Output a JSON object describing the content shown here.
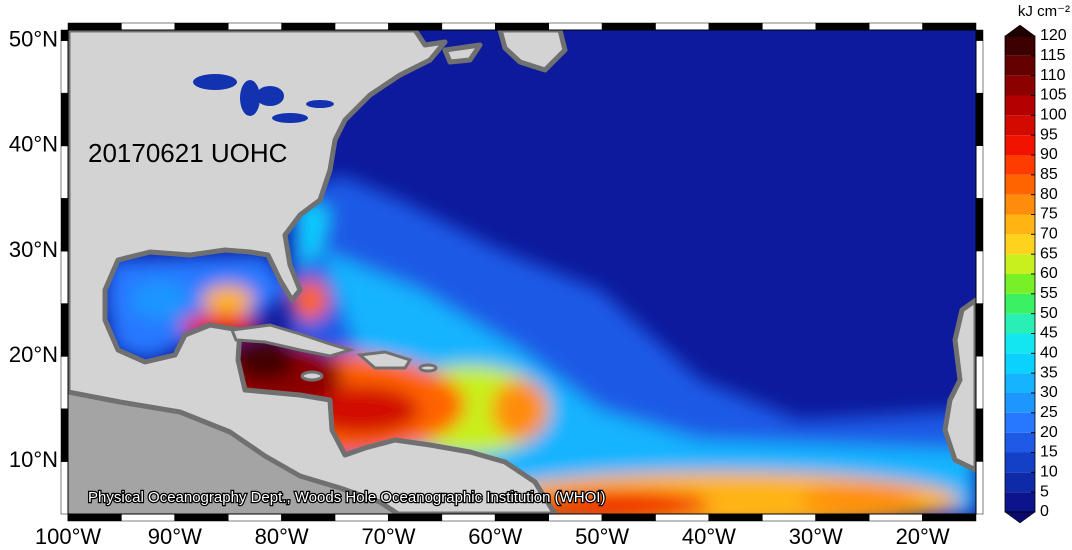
{
  "map": {
    "title": "20170621 UOHC",
    "credit": "Physical Oceanography Dept., Woods Hole Oceanographic Institution (WHOI)",
    "xlim": [
      -100,
      -15
    ],
    "ylim": [
      5,
      51
    ],
    "xticks": [
      {
        "value": -100,
        "label": "100°W"
      },
      {
        "value": -90,
        "label": "90°W"
      },
      {
        "value": -80,
        "label": "80°W"
      },
      {
        "value": -70,
        "label": "70°W"
      },
      {
        "value": -60,
        "label": "60°W"
      },
      {
        "value": -50,
        "label": "50°W"
      },
      {
        "value": -40,
        "label": "40°W"
      },
      {
        "value": -30,
        "label": "30°W"
      },
      {
        "value": -20,
        "label": "20°W"
      }
    ],
    "yticks": [
      {
        "value": 10,
        "label": "10°N"
      },
      {
        "value": 20,
        "label": "20°N"
      },
      {
        "value": 30,
        "label": "30°N"
      },
      {
        "value": 40,
        "label": "40°N"
      },
      {
        "value": 50,
        "label": "50°N"
      }
    ]
  },
  "colorbar": {
    "unit": "kJ cm⁻²",
    "ticks": [
      0,
      5,
      10,
      15,
      20,
      25,
      30,
      35,
      40,
      45,
      50,
      55,
      60,
      65,
      70,
      75,
      80,
      85,
      90,
      95,
      100,
      105,
      110,
      115,
      120
    ],
    "colors": [
      "#0c148c",
      "#0f2aa8",
      "#1440c8",
      "#1e5ae6",
      "#2878ff",
      "#1e96ff",
      "#14b4ff",
      "#0ad2ff",
      "#14e6f0",
      "#28f0b4",
      "#3cf064",
      "#78f028",
      "#c8f01e",
      "#ffd21e",
      "#ffb414",
      "#ff8c0a",
      "#ff6400",
      "#ff3c00",
      "#f01400",
      "#d20a00",
      "#b40000",
      "#8c0000",
      "#640000",
      "#3c0000"
    ],
    "under_color": "#0a0a6e",
    "over_color": "#1e0000"
  }
}
